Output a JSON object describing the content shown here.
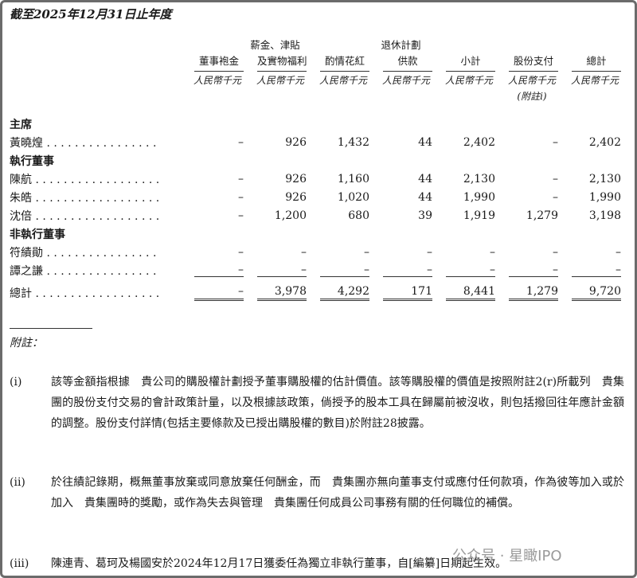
{
  "title": "截至2025年12月31日止年度",
  "columns": [
    {
      "line1": "",
      "line2": "董事袍金",
      "unit": "人民幣千元"
    },
    {
      "line1": "薪金、津貼",
      "line2": "及實物福利",
      "unit": "人民幣千元"
    },
    {
      "line1": "",
      "line2": "酌情花紅",
      "unit": "人民幣千元"
    },
    {
      "line1": "退休計劃",
      "line2": "供款",
      "unit": "人民幣千元"
    },
    {
      "line1": "",
      "line2": "小計",
      "unit": "人民幣千元"
    },
    {
      "line1": "",
      "line2": "股份支付",
      "unit": "人民幣千元",
      "note": "(附註i)"
    },
    {
      "line1": "",
      "line2": "總計",
      "unit": "人民幣千元"
    }
  ],
  "sections": [
    {
      "heading": "主席",
      "rows": [
        {
          "name": "黃曉煌 . . . . . . . . . . . . . . . .",
          "values": [
            "–",
            "926",
            "1,432",
            "44",
            "2,402",
            "–",
            "2,402"
          ]
        }
      ]
    },
    {
      "heading": "執行董事",
      "rows": [
        {
          "name": "陳航 . . . . . . . . . . . . . . . . . .",
          "values": [
            "–",
            "926",
            "1,160",
            "44",
            "2,130",
            "–",
            "2,130"
          ]
        },
        {
          "name": "朱皓 . . . . . . . . . . . . . . . . . .",
          "values": [
            "–",
            "926",
            "1,020",
            "44",
            "1,990",
            "–",
            "1,990"
          ]
        },
        {
          "name": "沈倍 . . . . . . . . . . . . . . . . . .",
          "values": [
            "–",
            "1,200",
            "680",
            "39",
            "1,919",
            "1,279",
            "3,198"
          ]
        }
      ]
    },
    {
      "heading": "非執行董事",
      "rows": [
        {
          "name": "符績勛 . . . . . . . . . . . . . . . .",
          "values": [
            "–",
            "–",
            "–",
            "–",
            "–",
            "–",
            "–"
          ]
        },
        {
          "name": "譚之謙 . . . . . . . . . . . . . . . .",
          "values": [
            "–",
            "–",
            "–",
            "–",
            "–",
            "–",
            "–"
          ]
        }
      ]
    }
  ],
  "total": {
    "name": "總計 . . . . . . . . . . . . . . . . . .",
    "values": [
      "–",
      "3,978",
      "4,292",
      "171",
      "8,441",
      "1,279",
      "9,720"
    ]
  },
  "footnotes": {
    "label": "附註：",
    "items": [
      {
        "marker": "(i)",
        "text": "該等金額指根據　貴公司的購股權計劃授予董事購股權的估計價值。該等購股權的價值是按照附註2(r)所載列　貴集團的股份支付交易的會計政策計量，以及根據該政策，倘授予的股本工具在歸屬前被沒收，則包括撥回往年應計金額的調整。股份支付詳情(包括主要條款及已授出購股權的數目)於附註28披露。"
      },
      {
        "marker": "(ii)",
        "text": "於往績記錄期，概無董事放棄或同意放棄任何酬金，而　貴集團亦無向董事支付或應付任何款項，作為彼等加入或於加入　貴集團時的獎勵，或作為失去與管理　貴集團任何成員公司事務有關的任何職位的補償。"
      },
      {
        "marker": "(iii)",
        "text": "陳連青、葛珂及楊國安於2024年12月17日獲委任為獨立非執行董事，自[編纂]日期起生效。"
      }
    ]
  },
  "watermark": "公众号 · 星瞰IPO"
}
